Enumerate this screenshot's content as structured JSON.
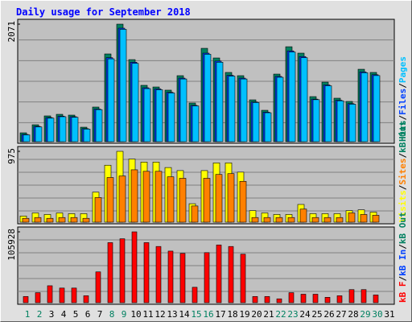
{
  "title": "Daily usage for September 2018",
  "chart_data": [
    {
      "type": "bar",
      "legend_separator": "/",
      "ylim": [
        0,
        2071
      ],
      "yticks": [
        2071
      ],
      "series": [
        {
          "name": "Hits",
          "color": "#008060",
          "values": [
            156,
            298,
            454,
            482,
            468,
            255,
            610,
            1546,
            2071,
            1446,
            993,
            964,
            908,
            1163,
            681,
            1645,
            1475,
            1220,
            1163,
            737,
            553,
            1191,
            1673,
            1560,
            794,
            1049,
            766,
            709,
            1276,
            1220,
            0
          ]
        },
        {
          "name": "Files",
          "color": "#0040ff",
          "values": [
            128,
            270,
            425,
            450,
            440,
            230,
            575,
            1480,
            2000,
            1400,
            950,
            930,
            870,
            1120,
            640,
            1560,
            1420,
            1170,
            1120,
            700,
            520,
            1150,
            1600,
            1500,
            750,
            1000,
            730,
            670,
            1230,
            1180,
            0
          ]
        },
        {
          "name": "Pages",
          "color": "#00c0ff",
          "values": [
            120,
            260,
            415,
            440,
            430,
            222,
            565,
            1460,
            1980,
            1380,
            935,
            915,
            858,
            1105,
            630,
            1540,
            1400,
            1155,
            1105,
            690,
            510,
            1135,
            1580,
            1480,
            740,
            985,
            720,
            660,
            1215,
            1165,
            0
          ]
        }
      ]
    },
    {
      "type": "bar",
      "legend_separator": "/",
      "ylim": [
        0,
        975
      ],
      "yticks": [
        975
      ],
      "series": [
        {
          "name": "Visits",
          "color": "#ffff00",
          "values": [
            85,
            127,
            106,
            127,
            117,
            117,
            413,
            784,
            975,
            869,
            827,
            827,
            752,
            710,
            254,
            710,
            816,
            816,
            689,
            159,
            127,
            106,
            106,
            244,
            117,
            117,
            117,
            159,
            170,
            138,
            0
          ]
        },
        {
          "name": "Sites",
          "color": "#ff8000",
          "values": [
            53,
            64,
            53,
            64,
            64,
            53,
            339,
            615,
            636,
            721,
            700,
            700,
            625,
            604,
            223,
            604,
            657,
            668,
            562,
            64,
            64,
            64,
            64,
            180,
            64,
            64,
            64,
            127,
            106,
            95,
            0
          ]
        },
        {
          "name": "kB Out",
          "color": "#008060",
          "values": [
            null,
            null,
            null,
            null,
            null,
            null,
            null,
            null,
            null,
            null,
            null,
            null,
            null,
            null,
            null,
            null,
            null,
            null,
            null,
            null,
            null,
            null,
            null,
            null,
            null,
            null,
            null,
            null,
            null,
            null,
            null
          ]
        }
      ]
    },
    {
      "type": "bar",
      "legend_separator": "/",
      "ylim": [
        0,
        105928
      ],
      "yticks": [
        105928
      ],
      "categories": [
        "1",
        "2",
        "3",
        "4",
        "5",
        "6",
        "7",
        "8",
        "9",
        "10",
        "11",
        "12",
        "13",
        "14",
        "15",
        "16",
        "17",
        "18",
        "19",
        "20",
        "21",
        "22",
        "23",
        "24",
        "25",
        "26",
        "27",
        "28",
        "29",
        "30",
        "31"
      ],
      "category_colors": [
        "#008060",
        "#008060",
        "#000000",
        "#000000",
        "#000000",
        "#000000",
        "#000000",
        "#008060",
        "#008060",
        "#000000",
        "#000000",
        "#000000",
        "#000000",
        "#000000",
        "#008060",
        "#008060",
        "#000000",
        "#000000",
        "#000000",
        "#000000",
        "#000000",
        "#008060",
        "#008060",
        "#000000",
        "#000000",
        "#000000",
        "#000000",
        "#000000",
        "#008060",
        "#008060",
        "#000000"
      ],
      "series": [
        {
          "name": "kB F",
          "color": "#ff0000",
          "values": [
            9211,
            14968,
            25331,
            21877,
            21877,
            10363,
            46056,
            89809,
            95566,
            105928,
            89809,
            84052,
            77144,
            73689,
            23029,
            74841,
            86355,
            84052,
            72538,
            9211,
            9211,
            5757,
            14968,
            12666,
            12666,
            8060,
            10363,
            19574,
            19574,
            11514,
            0
          ]
        },
        {
          "name": "kB In",
          "color": "#0040ff",
          "values": [
            null,
            null,
            null,
            null,
            null,
            null,
            null,
            null,
            null,
            null,
            null,
            null,
            null,
            null,
            null,
            null,
            null,
            null,
            null,
            null,
            null,
            null,
            null,
            null,
            null,
            null,
            null,
            null,
            null,
            null,
            null
          ]
        },
        {
          "name": "kB Out",
          "color": "#008060",
          "values": [
            null,
            null,
            null,
            null,
            null,
            null,
            null,
            null,
            null,
            null,
            null,
            null,
            null,
            null,
            null,
            null,
            null,
            null,
            null,
            null,
            null,
            null,
            null,
            null,
            null,
            null,
            null,
            null,
            null,
            null,
            null
          ]
        }
      ]
    }
  ]
}
